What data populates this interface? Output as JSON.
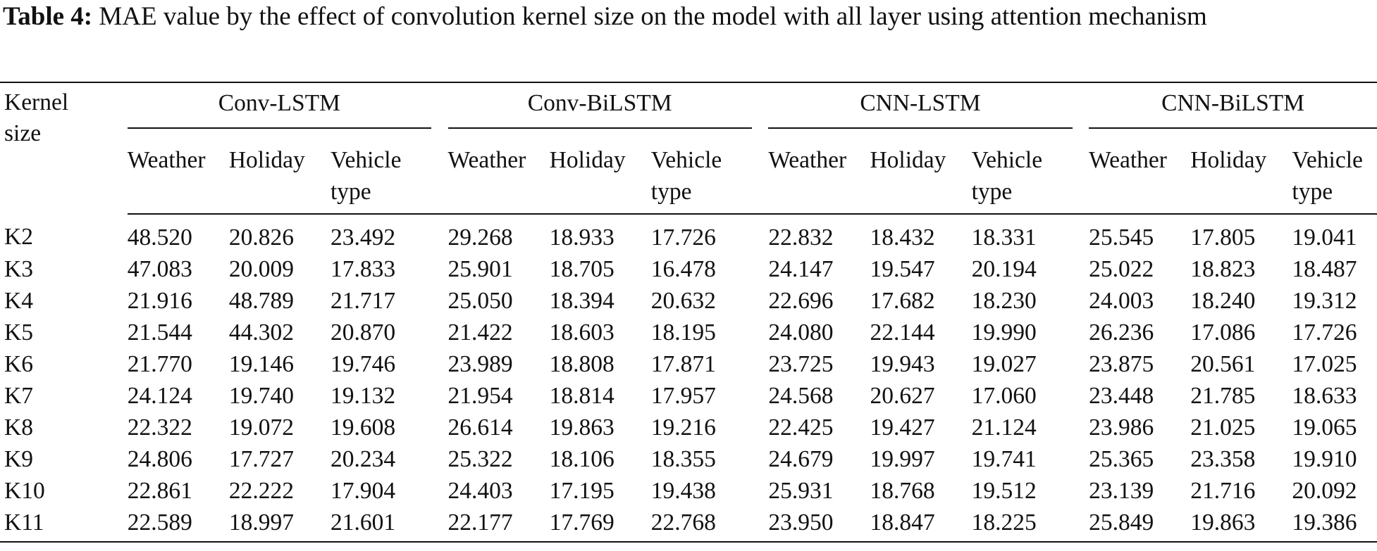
{
  "caption": {
    "label": "Table 4:",
    "text": " MAE value by the effect of convolution kernel size on the model with all layer using attention mechanism"
  },
  "table": {
    "kernel_header": "Kernel size",
    "groups": [
      "Conv-LSTM",
      "Conv-BiLSTM",
      "CNN-LSTM",
      "CNN-BiLSTM"
    ],
    "subheaders": [
      "Weather",
      "Holiday",
      "Vehicle type"
    ],
    "rows": [
      {
        "label": "K2",
        "values": [
          "48.520",
          "20.826",
          "23.492",
          "29.268",
          "18.933",
          "17.726",
          "22.832",
          "18.432",
          "18.331",
          "25.545",
          "17.805",
          "19.041"
        ],
        "bold": []
      },
      {
        "label": "K3",
        "values": [
          "47.083",
          "20.009",
          "17.833",
          "25.901",
          "18.705",
          "16.478",
          "24.147",
          "19.547",
          "20.194",
          "25.022",
          "18.823",
          "18.487"
        ],
        "bold": [
          5
        ]
      },
      {
        "label": "K4",
        "values": [
          "21.916",
          "48.789",
          "21.717",
          "25.050",
          "18.394",
          "20.632",
          "22.696",
          "17.682",
          "18.230",
          "24.003",
          "18.240",
          "19.312"
        ],
        "bold": []
      },
      {
        "label": "K5",
        "values": [
          "21.544",
          "44.302",
          "20.870",
          "21.422",
          "18.603",
          "18.195",
          "24.080",
          "22.144",
          "19.990",
          "26.236",
          "17.086",
          "17.726"
        ],
        "bold": []
      },
      {
        "label": "K6",
        "values": [
          "21.770",
          "19.146",
          "19.746",
          "23.989",
          "18.808",
          "17.871",
          "23.725",
          "19.943",
          "19.027",
          "23.875",
          "20.561",
          "17.025"
        ],
        "bold": [
          11
        ]
      },
      {
        "label": "K7",
        "values": [
          "24.124",
          "19.740",
          "19.132",
          "21.954",
          "18.814",
          "17.957",
          "24.568",
          "20.627",
          "17.060",
          "23.448",
          "21.785",
          "18.633"
        ],
        "bold": [
          8
        ]
      },
      {
        "label": "K8",
        "values": [
          "22.322",
          "19.072",
          "19.608",
          "26.614",
          "19.863",
          "19.216",
          "22.425",
          "19.427",
          "21.124",
          "23.986",
          "21.025",
          "19.065"
        ],
        "bold": []
      },
      {
        "label": "K9",
        "values": [
          "24.806",
          "17.727",
          "20.234",
          "25.322",
          "18.106",
          "18.355",
          "24.679",
          "19.997",
          "19.741",
          "25.365",
          "23.358",
          "19.910"
        ],
        "bold": [
          1
        ]
      },
      {
        "label": "K10",
        "values": [
          "22.861",
          "22.222",
          "17.904",
          "24.403",
          "17.195",
          "19.438",
          "25.931",
          "18.768",
          "19.512",
          "23.139",
          "21.716",
          "20.092"
        ],
        "bold": []
      },
      {
        "label": "K11",
        "values": [
          "22.589",
          "18.997",
          "21.601",
          "22.177",
          "17.769",
          "22.768",
          "23.950",
          "18.847",
          "18.225",
          "25.849",
          "19.863",
          "19.386"
        ],
        "bold": []
      }
    ]
  }
}
